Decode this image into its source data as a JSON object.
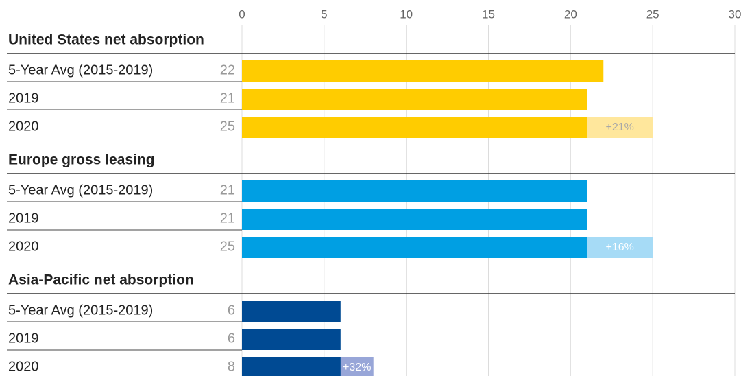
{
  "chart_data": {
    "type": "bar",
    "orientation": "horizontal",
    "xlim": [
      0,
      30
    ],
    "xticks": [
      0,
      5,
      10,
      15,
      20,
      25,
      30
    ],
    "grid": true,
    "groups": [
      {
        "title": "United States net absorption",
        "color": "#ffcc00",
        "change_color": "#ffe79c",
        "change_text_color": "#a8a8a8",
        "categories": [
          "5-Year Avg (2015-2019)",
          "2019",
          "2020"
        ],
        "values": [
          22,
          21,
          25
        ],
        "change_label": "+21%"
      },
      {
        "title": "Europe gross leasing",
        "color": "#009fe3",
        "change_color": "#a6dbf6",
        "change_text_color": "#ffffff",
        "categories": [
          "5-Year Avg (2015-2019)",
          "2019",
          "2020"
        ],
        "values": [
          21,
          21,
          25
        ],
        "change_label": "+16%"
      },
      {
        "title": "Asia-Pacific net absorption",
        "color": "#004a93",
        "change_color": "#98a6d8",
        "change_text_color": "#ffffff",
        "categories": [
          "5-Year Avg (2015-2019)",
          "2019",
          "2020"
        ],
        "values": [
          6,
          6,
          8
        ],
        "change_label": "+32%"
      }
    ]
  }
}
